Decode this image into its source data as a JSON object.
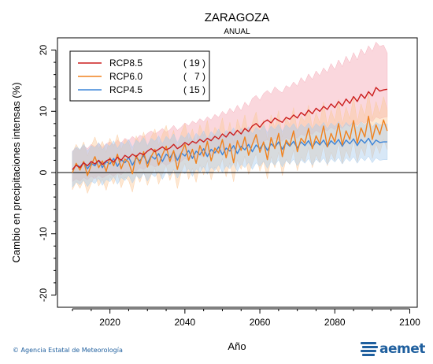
{
  "chart_data": {
    "type": "line",
    "title": "ZARAGOZA",
    "subtitle": "ANUAL",
    "xlabel": "Año",
    "ylabel": "Cambio en precipitaciones intensas (%)",
    "xlim": [
      2006,
      2102
    ],
    "ylim": [
      -22,
      22
    ],
    "x_ticks": [
      2020,
      2040,
      2060,
      2080,
      2100
    ],
    "y_ticks": [
      -20,
      -10,
      0,
      10,
      20
    ],
    "legend_position": "top-left",
    "zero_line": true,
    "x_start": 2010,
    "series": [
      {
        "name": "RCP8.5",
        "count": "( 19 )",
        "color": "#cc1f1f",
        "band_color": "#f4a6b4",
        "values": [
          0.5,
          1.2,
          0.8,
          1.6,
          1.1,
          1.8,
          1.4,
          2.0,
          1.3,
          1.9,
          2.2,
          1.7,
          2.5,
          2.0,
          2.8,
          2.4,
          3.0,
          2.6,
          3.2,
          2.9,
          3.5,
          3.9,
          3.4,
          3.8,
          4.2,
          3.7,
          4.0,
          4.6,
          3.9,
          4.3,
          4.9,
          4.5,
          5.1,
          4.8,
          5.4,
          5.0,
          5.6,
          5.2,
          5.9,
          5.5,
          6.3,
          5.8,
          6.6,
          6.1,
          6.9,
          6.3,
          7.2,
          6.7,
          7.6,
          8.0,
          7.4,
          8.2,
          8.6,
          8.1,
          8.9,
          8.5,
          8.2,
          9.0,
          8.7,
          9.4,
          8.9,
          9.8,
          9.3,
          10.2,
          9.6,
          10.5,
          10.0,
          10.8,
          10.3,
          11.2,
          10.6,
          11.6,
          10.9,
          12.0,
          11.3,
          12.4,
          11.6,
          12.8,
          12.1,
          13.2,
          12.5,
          13.9,
          13.3,
          13.5,
          13.6
        ],
        "lower": [
          -1.5,
          -1.0,
          -1.4,
          -0.8,
          -1.2,
          -0.6,
          -1.0,
          -0.4,
          -0.9,
          -0.5,
          -0.2,
          -0.6,
          0.0,
          -0.4,
          0.3,
          0.0,
          0.5,
          0.2,
          0.8,
          0.5,
          1.0,
          1.3,
          0.9,
          1.2,
          1.6,
          1.2,
          1.5,
          2.0,
          1.4,
          1.8,
          2.3,
          2.0,
          2.5,
          2.2,
          2.8,
          2.5,
          3.0,
          2.7,
          3.3,
          3.0,
          3.6,
          3.2,
          3.9,
          3.5,
          4.2,
          3.8,
          4.4,
          4.0,
          4.7,
          5.0,
          4.5,
          5.1,
          5.4,
          5.0,
          5.6,
          5.3,
          5.1,
          5.7,
          5.4,
          6.0,
          5.6,
          6.3,
          6.0,
          6.6,
          6.2,
          6.9,
          6.5,
          7.1,
          6.8,
          7.4,
          7.0,
          7.6,
          7.2,
          7.9,
          7.5,
          8.2,
          7.7,
          8.4,
          8.0,
          8.7,
          8.3,
          9.1,
          8.8,
          9.0,
          9.1
        ],
        "upper": [
          3.5,
          4.0,
          3.6,
          4.4,
          3.9,
          4.6,
          4.2,
          4.8,
          4.1,
          4.7,
          5.0,
          4.5,
          5.3,
          4.8,
          5.6,
          5.2,
          5.9,
          5.4,
          6.1,
          5.8,
          6.4,
          6.8,
          6.3,
          6.7,
          7.2,
          6.6,
          7.0,
          7.7,
          6.9,
          7.4,
          8.1,
          7.6,
          8.4,
          8.0,
          8.8,
          8.3,
          9.1,
          8.6,
          9.5,
          9.0,
          10.0,
          9.4,
          10.5,
          9.8,
          11.0,
          10.1,
          11.5,
          10.8,
          12.1,
          12.6,
          11.8,
          12.9,
          13.4,
          12.8,
          14.0,
          13.4,
          13.0,
          14.2,
          13.8,
          14.8,
          14.1,
          15.5,
          14.7,
          16.1,
          15.2,
          16.6,
          15.8,
          17.1,
          16.3,
          17.8,
          16.8,
          18.4,
          17.3,
          19.0,
          17.9,
          19.6,
          18.4,
          20.2,
          19.2,
          20.7,
          19.8,
          21.3,
          20.6,
          20.8,
          19.5
        ]
      },
      {
        "name": "RCP6.0",
        "count": "(   7 )",
        "color": "#f0821e",
        "band_color": "#fbc99c",
        "values": [
          0.0,
          1.5,
          0.4,
          1.8,
          -0.5,
          1.2,
          2.6,
          0.8,
          1.9,
          0.2,
          2.4,
          1.1,
          3.0,
          0.6,
          2.2,
          1.7,
          -0.2,
          2.8,
          1.4,
          3.4,
          0.9,
          2.6,
          3.8,
          1.2,
          2.9,
          4.3,
          1.8,
          3.6,
          0.5,
          3.1,
          4.6,
          2.0,
          3.8,
          1.5,
          4.4,
          2.7,
          5.1,
          1.9,
          4.0,
          3.2,
          5.4,
          2.4,
          4.7,
          1.6,
          5.2,
          3.6,
          5.8,
          2.8,
          4.6,
          6.2,
          3.3,
          5.0,
          2.1,
          5.7,
          3.9,
          6.4,
          2.6,
          5.3,
          4.4,
          6.8,
          3.4,
          5.6,
          4.8,
          7.2,
          3.9,
          6.0,
          4.7,
          7.6,
          4.2,
          6.4,
          5.0,
          8.0,
          4.5,
          6.8,
          5.4,
          8.5,
          4.8,
          7.3,
          5.8,
          9.2,
          5.4,
          7.8,
          6.2,
          8.6,
          6.8
        ],
        "lower": [
          -2.8,
          -1.5,
          -2.6,
          -1.2,
          -3.4,
          -1.8,
          -0.4,
          -2.2,
          -1.1,
          -2.9,
          -0.6,
          -1.9,
          0.0,
          -2.5,
          -0.8,
          -1.3,
          -3.2,
          -0.2,
          -1.6,
          0.3,
          -2.1,
          -0.4,
          0.7,
          -1.9,
          -0.2,
          1.2,
          -1.3,
          0.5,
          -2.6,
          0.0,
          1.5,
          -1.1,
          0.7,
          -1.6,
          1.3,
          -0.4,
          2.0,
          -1.2,
          0.9,
          0.1,
          2.3,
          -0.7,
          1.6,
          -1.5,
          2.1,
          0.5,
          2.7,
          -0.3,
          1.5,
          3.1,
          0.2,
          1.9,
          -1.0,
          2.6,
          0.8,
          3.3,
          -0.5,
          2.2,
          1.3,
          3.7,
          0.3,
          2.5,
          1.7,
          4.1,
          0.8,
          2.9,
          1.6,
          4.5,
          1.1,
          3.3,
          1.9,
          4.9,
          1.4,
          3.7,
          2.3,
          5.4,
          1.7,
          4.2,
          2.7,
          6.1,
          2.3,
          4.7,
          3.1,
          5.5,
          3.7
        ],
        "upper": [
          3.2,
          4.6,
          3.5,
          5.0,
          2.7,
          4.3,
          5.8,
          3.9,
          5.1,
          3.3,
          5.6,
          4.2,
          6.2,
          3.7,
          5.4,
          4.9,
          3.0,
          6.0,
          4.6,
          6.6,
          4.1,
          5.8,
          7.1,
          4.4,
          6.2,
          7.7,
          5.0,
          6.9,
          3.7,
          6.4,
          8.0,
          5.2,
          7.1,
          4.7,
          7.8,
          6.0,
          8.5,
          5.1,
          7.4,
          6.5,
          8.9,
          5.6,
          8.2,
          4.8,
          8.7,
          6.9,
          9.4,
          6.0,
          8.1,
          9.9,
          6.6,
          8.6,
          5.3,
          9.4,
          7.3,
          10.1,
          5.8,
          9.0,
          7.8,
          10.6,
          6.7,
          9.3,
          8.3,
          11.0,
          7.2,
          9.8,
          8.1,
          11.5,
          7.6,
          10.2,
          8.4,
          11.9,
          7.9,
          10.7,
          8.8,
          12.4,
          8.2,
          11.2,
          9.2,
          13.0,
          8.8,
          11.6,
          9.6,
          12.4,
          10.2
        ]
      },
      {
        "name": "RCP4.5",
        "count": "( 15 )",
        "color": "#3d85d8",
        "band_color": "#a9cdee",
        "values": [
          0.4,
          1.3,
          0.9,
          1.7,
          0.6,
          1.5,
          1.1,
          2.0,
          0.8,
          1.8,
          1.4,
          2.3,
          1.0,
          2.1,
          1.6,
          2.5,
          1.2,
          2.4,
          1.9,
          2.8,
          1.5,
          2.7,
          2.2,
          3.1,
          1.8,
          3.0,
          2.4,
          3.4,
          2.0,
          3.2,
          2.7,
          3.6,
          2.3,
          3.5,
          2.9,
          3.9,
          2.6,
          3.8,
          3.2,
          4.2,
          2.9,
          4.0,
          3.5,
          4.4,
          3.1,
          4.3,
          3.7,
          4.6,
          3.4,
          4.5,
          3.9,
          4.8,
          3.6,
          4.7,
          4.1,
          5.0,
          3.8,
          4.9,
          4.3,
          5.1,
          4.0,
          5.0,
          4.4,
          5.2,
          4.1,
          5.1,
          4.5,
          5.3,
          4.2,
          5.2,
          4.6,
          5.4,
          4.3,
          5.3,
          4.7,
          5.5,
          4.4,
          5.4,
          4.8,
          5.6,
          4.5,
          5.3,
          4.9,
          5.0,
          5.0
        ],
        "lower": [
          -2.4,
          -1.5,
          -2.0,
          -1.2,
          -2.3,
          -1.4,
          -1.8,
          -0.9,
          -2.1,
          -1.1,
          -1.5,
          -0.6,
          -1.9,
          -0.8,
          -1.3,
          -0.4,
          -1.7,
          -0.5,
          -1.0,
          -0.1,
          -1.4,
          -0.2,
          -0.7,
          0.2,
          -1.1,
          0.1,
          -0.5,
          0.5,
          -0.9,
          0.3,
          -0.2,
          0.7,
          -0.6,
          0.6,
          0.0,
          1.0,
          -0.3,
          0.9,
          0.3,
          1.3,
          0.0,
          1.1,
          0.6,
          1.5,
          0.2,
          1.4,
          0.8,
          1.7,
          0.5,
          1.6,
          1.0,
          1.9,
          0.7,
          1.8,
          1.2,
          2.1,
          0.9,
          2.0,
          1.4,
          2.2,
          1.1,
          2.1,
          1.5,
          2.3,
          1.2,
          2.2,
          1.6,
          2.4,
          1.3,
          2.3,
          1.7,
          2.5,
          1.4,
          2.4,
          1.8,
          2.6,
          1.5,
          2.5,
          1.9,
          2.7,
          1.6,
          2.4,
          2.0,
          2.1,
          2.1
        ],
        "upper": [
          3.4,
          4.2,
          3.8,
          4.6,
          3.5,
          4.4,
          4.0,
          4.9,
          3.7,
          4.7,
          4.3,
          5.2,
          3.9,
          5.0,
          4.5,
          5.4,
          4.1,
          5.3,
          4.8,
          5.7,
          4.4,
          5.6,
          5.1,
          6.0,
          4.7,
          5.9,
          5.3,
          6.3,
          4.9,
          6.1,
          5.6,
          6.5,
          5.2,
          6.4,
          5.8,
          6.8,
          5.5,
          6.7,
          6.1,
          7.1,
          5.8,
          6.9,
          6.4,
          7.3,
          6.0,
          7.2,
          6.6,
          7.5,
          6.3,
          7.4,
          6.8,
          7.7,
          6.5,
          7.6,
          7.0,
          7.9,
          6.7,
          7.8,
          7.2,
          8.0,
          6.9,
          7.9,
          7.3,
          8.1,
          7.0,
          8.0,
          7.4,
          8.2,
          7.1,
          8.1,
          7.5,
          8.3,
          7.2,
          8.2,
          7.6,
          8.4,
          7.3,
          8.3,
          7.7,
          8.5,
          7.4,
          8.2,
          7.8,
          7.9,
          7.9
        ]
      }
    ]
  },
  "footer": {
    "copyright": "© Agencia Estatal de Meteorología",
    "logo_text": "aemet",
    "logo_color": "#1f5f9e"
  }
}
